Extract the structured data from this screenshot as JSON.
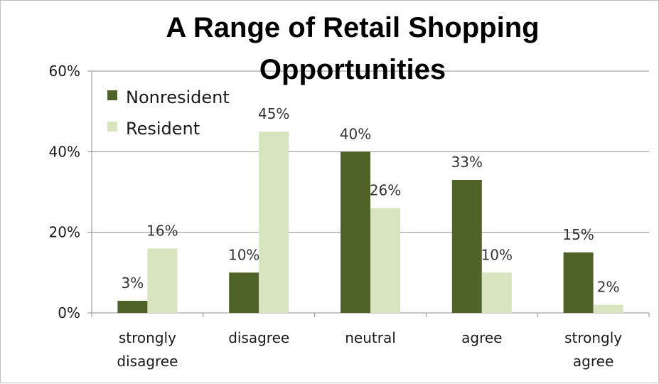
{
  "chart_data": {
    "type": "bar",
    "title": "A Range of Retail Shopping Opportunities",
    "title_lines": [
      "A Range of Retail Shopping",
      "Opportunities"
    ],
    "categories": [
      [
        "strongly",
        "disagree"
      ],
      [
        "disagree"
      ],
      [
        "neutral"
      ],
      [
        "agree"
      ],
      [
        "strongly",
        "agree"
      ]
    ],
    "series": [
      {
        "name": "Nonresident",
        "color": "#4f6228",
        "values": [
          3,
          10,
          40,
          33,
          15
        ],
        "labels": [
          "3%",
          "10%",
          "40%",
          "33%",
          "15%"
        ]
      },
      {
        "name": "Resident",
        "color": "#d7e4bd",
        "values": [
          16,
          45,
          26,
          10,
          2
        ],
        "labels": [
          "16%",
          "45%",
          "26%",
          "10%",
          "2%"
        ]
      }
    ],
    "ylim": [
      0,
      60
    ],
    "yticks": [
      0,
      20,
      40,
      60
    ],
    "ytick_labels": [
      "0%",
      "20%",
      "40%",
      "60%"
    ],
    "xlabel": "",
    "ylabel": "",
    "grid": true,
    "legend_position": "top-left"
  }
}
